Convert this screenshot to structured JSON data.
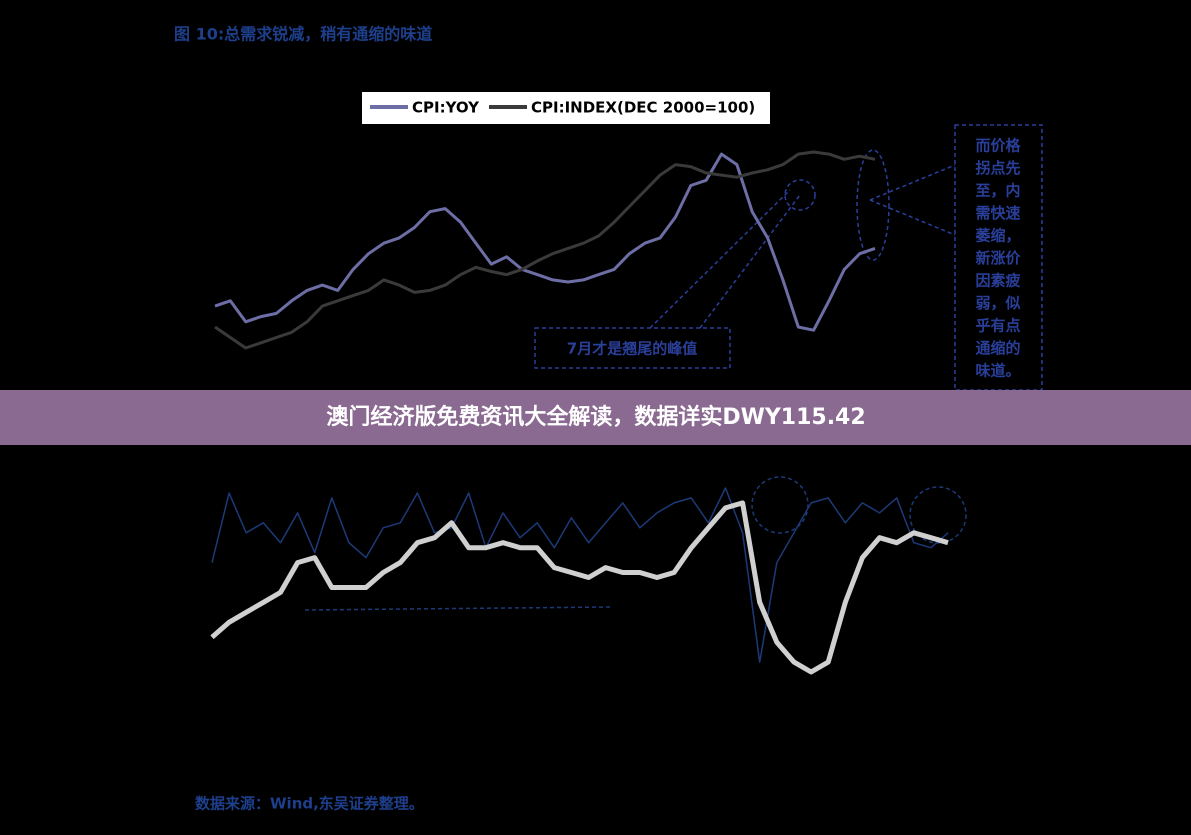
{
  "header": {
    "title": "图 10:总需求锐减，稍有通缩的味道"
  },
  "banner": {
    "text": "澳门经济版免费资讯大全解读，数据详实DWY115.42"
  },
  "source": "数据来源：Wind,东吴证券整理。",
  "chart_data": [
    {
      "type": "line",
      "annotations": {
        "peak": "7月才是翘尾的峰值",
        "note": [
          "而价格",
          "拐点先",
          "至，内",
          "需快速",
          "萎缩，",
          "新涨价",
          "因素疲",
          "弱，似",
          "乎有点",
          "通缩的",
          "味道。"
        ]
      },
      "series": [
        {
          "name": "CPI:YOY",
          "color": "#6e6ea6",
          "values": [
            45,
            50,
            30,
            35,
            38,
            50,
            60,
            65,
            60,
            80,
            95,
            105,
            110,
            120,
            135,
            138,
            125,
            105,
            85,
            92,
            80,
            75,
            70,
            68,
            70,
            75,
            80,
            95,
            105,
            110,
            130,
            160,
            165,
            190,
            180,
            135,
            110,
            70,
            25,
            22,
            50,
            80,
            95,
            100
          ]
        },
        {
          "name": "CPI:INDEX(DEC 2000=100)",
          "color": "#3a3a3a",
          "values": [
            25,
            15,
            5,
            10,
            15,
            20,
            30,
            45,
            50,
            55,
            60,
            70,
            65,
            58,
            60,
            65,
            75,
            82,
            78,
            75,
            80,
            88,
            95,
            100,
            105,
            112,
            125,
            140,
            155,
            170,
            180,
            178,
            172,
            170,
            168,
            172,
            175,
            180,
            190,
            192,
            190,
            185,
            188,
            185
          ]
        }
      ]
    },
    {
      "type": "line",
      "series": [
        {
          "color": "#1c3a78",
          "values": [
            120,
            190,
            150,
            160,
            140,
            170,
            130,
            185,
            140,
            125,
            155,
            160,
            190,
            150,
            155,
            190,
            135,
            170,
            145,
            160,
            135,
            165,
            140,
            160,
            180,
            155,
            170,
            180,
            185,
            160,
            195,
            150,
            20,
            120,
            150,
            180,
            185,
            160,
            180,
            170,
            185,
            140,
            135,
            150
          ]
        },
        {
          "color": "#d0d0d0",
          "values": [
            45,
            60,
            70,
            80,
            90,
            120,
            125,
            95,
            95,
            95,
            110,
            120,
            140,
            145,
            160,
            135,
            135,
            140,
            135,
            135,
            115,
            110,
            105,
            115,
            110,
            110,
            105,
            110,
            135,
            155,
            175,
            180,
            80,
            40,
            20,
            10,
            20,
            80,
            125,
            145,
            140,
            150,
            145,
            140
          ]
        }
      ]
    }
  ]
}
